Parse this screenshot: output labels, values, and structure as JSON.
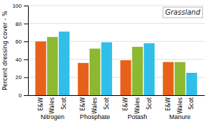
{
  "chart_data": {
    "type": "bar",
    "ylabel": "Percent dressing cover - %",
    "annotation": "Grassland",
    "categories": [
      "Nitrogen",
      "Phosphate",
      "Potash",
      "Manure"
    ],
    "series": [
      {
        "name": "E&W",
        "color": "#E8611A",
        "values": [
          60,
          36,
          39,
          37
        ]
      },
      {
        "name": "Wales",
        "color": "#8DB932",
        "values": [
          65,
          52,
          54,
          37
        ]
      },
      {
        "name": "Scot",
        "color": "#30BFE8",
        "values": [
          71,
          59,
          58,
          25
        ]
      }
    ],
    "ylim": [
      0,
      100
    ],
    "yticks": [
      0,
      20,
      40,
      60,
      80,
      100
    ],
    "grid": true
  }
}
